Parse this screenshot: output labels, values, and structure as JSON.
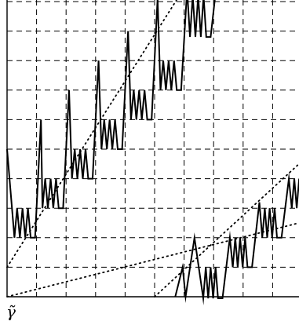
{
  "diagram": {
    "label": "γ̃",
    "grid": {
      "cols": 10,
      "rows": 10
    },
    "diagonal_lines": 3
  }
}
